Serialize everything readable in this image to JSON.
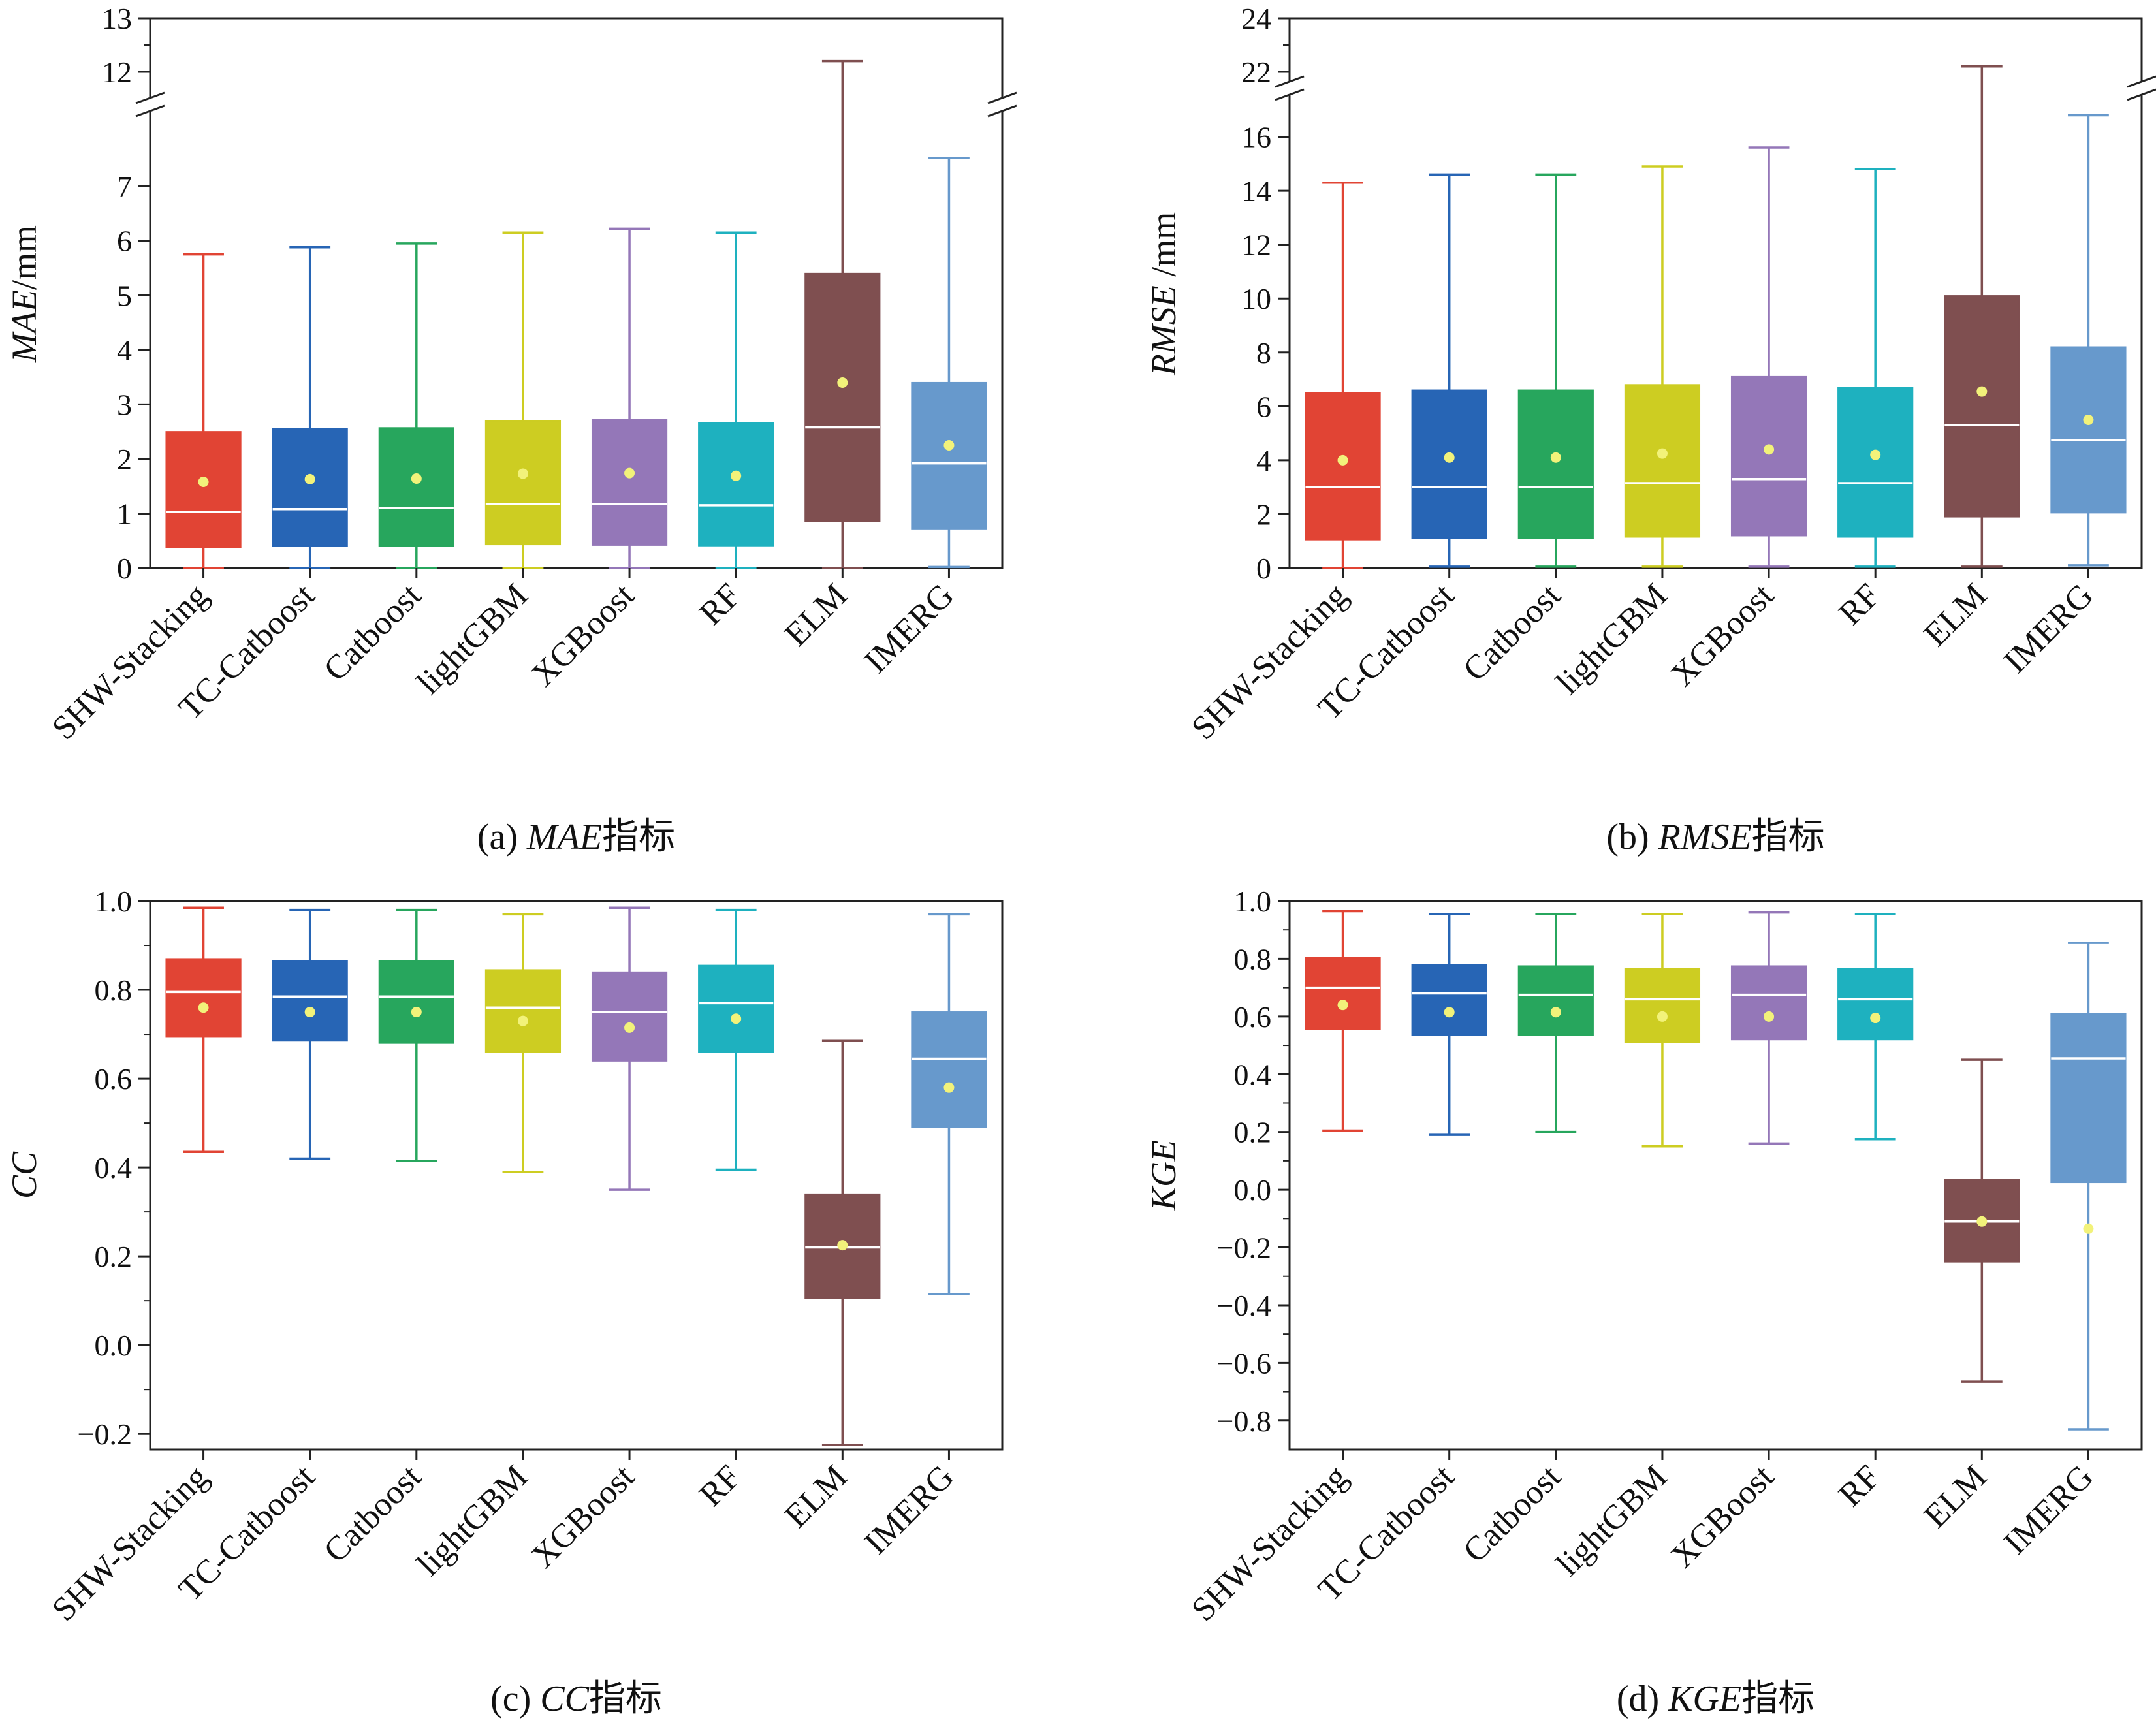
{
  "chart_data": [
    {
      "type": "box",
      "caption_prefix": "(a) ",
      "caption_metric": "MAE",
      "caption_suffix": "指标",
      "ylabel_metric": "MAE",
      "ylabel_unit": "/mm",
      "categories": [
        "SHW-Stacking",
        "TC-Catboost",
        "Catboost",
        "lightGBM",
        "XGBoost",
        "RF",
        "ELM",
        "IMERG"
      ],
      "lower_range": [
        0,
        7.9
      ],
      "upper_range": [
        12,
        13
      ],
      "lower_ticks": [
        "0",
        "1",
        "2",
        "3",
        "4",
        "5",
        "6",
        "7"
      ],
      "upper_ticks": [
        "12",
        "13"
      ],
      "boxes": [
        {
          "min": 0,
          "q1": 0.38,
          "median": 1.03,
          "q3": 2.5,
          "max": 5.75,
          "mean": 1.58
        },
        {
          "min": 0,
          "q1": 0.4,
          "median": 1.08,
          "q3": 2.55,
          "max": 5.88,
          "mean": 1.63
        },
        {
          "min": 0,
          "q1": 0.4,
          "median": 1.1,
          "q3": 2.57,
          "max": 5.95,
          "mean": 1.64
        },
        {
          "min": 0,
          "q1": 0.43,
          "median": 1.17,
          "q3": 2.7,
          "max": 6.15,
          "mean": 1.73
        },
        {
          "min": 0,
          "q1": 0.42,
          "median": 1.17,
          "q3": 2.72,
          "max": 6.22,
          "mean": 1.74
        },
        {
          "min": 0,
          "q1": 0.41,
          "median": 1.15,
          "q3": 2.66,
          "max": 6.15,
          "mean": 1.69
        },
        {
          "min": 0,
          "q1": 0.85,
          "median": 2.58,
          "q3": 5.4,
          "max": 12.2,
          "mean": 3.4
        },
        {
          "min": 0.02,
          "q1": 0.72,
          "median": 1.92,
          "q3": 3.4,
          "max": 7.52,
          "mean": 2.25
        }
      ]
    },
    {
      "type": "box",
      "caption_prefix": "(b) ",
      "caption_metric": "RMSE",
      "caption_suffix": "指标",
      "ylabel_metric": "RMSE",
      "ylabel_unit": " /mm",
      "categories": [
        "SHW-Stacking",
        "TC-Catboost",
        "Catboost",
        "lightGBM",
        "XGBoost",
        "RF",
        "ELM",
        "IMERG"
      ],
      "lower_range": [
        0,
        17.2
      ],
      "upper_range": [
        22,
        24
      ],
      "lower_ticks": [
        "0",
        "2",
        "4",
        "6",
        "8",
        "10",
        "12",
        "14",
        "16"
      ],
      "upper_ticks": [
        "22",
        "24"
      ],
      "boxes": [
        {
          "min": 0,
          "q1": 1.05,
          "median": 3.0,
          "q3": 6.5,
          "max": 14.3,
          "mean": 4.0
        },
        {
          "min": 0.05,
          "q1": 1.1,
          "median": 3.0,
          "q3": 6.6,
          "max": 14.6,
          "mean": 4.1
        },
        {
          "min": 0.05,
          "q1": 1.1,
          "median": 3.0,
          "q3": 6.6,
          "max": 14.6,
          "mean": 4.1
        },
        {
          "min": 0.05,
          "q1": 1.15,
          "median": 3.15,
          "q3": 6.8,
          "max": 14.9,
          "mean": 4.25
        },
        {
          "min": 0.05,
          "q1": 1.2,
          "median": 3.3,
          "q3": 7.1,
          "max": 15.6,
          "mean": 4.4
        },
        {
          "min": 0.05,
          "q1": 1.15,
          "median": 3.15,
          "q3": 6.7,
          "max": 14.8,
          "mean": 4.2
        },
        {
          "min": 0.05,
          "q1": 1.9,
          "median": 5.3,
          "q3": 10.1,
          "max": 22.2,
          "mean": 6.55
        },
        {
          "min": 0.1,
          "q1": 2.05,
          "median": 4.75,
          "q3": 8.2,
          "max": 16.8,
          "mean": 5.5
        }
      ]
    },
    {
      "type": "box",
      "caption_prefix": "(c) ",
      "caption_metric": "CC",
      "caption_suffix": "指标",
      "ylabel_metric": "CC",
      "ylabel_unit": "",
      "categories": [
        "SHW-Stacking",
        "TC-Catboost",
        "Catboost",
        "lightGBM",
        "XGBoost",
        "RF",
        "ELM",
        "IMERG"
      ],
      "ylim": [
        -0.235,
        1.0
      ],
      "ticks": [
        "−0.2",
        "0.0",
        "0.2",
        "0.4",
        "0.6",
        "0.8",
        "1.0"
      ],
      "tick_values": [
        -0.2,
        0.0,
        0.2,
        0.4,
        0.6,
        0.8,
        1.0
      ],
      "boxes": [
        {
          "min": 0.435,
          "q1": 0.695,
          "median": 0.795,
          "q3": 0.87,
          "max": 0.985,
          "mean": 0.76
        },
        {
          "min": 0.42,
          "q1": 0.685,
          "median": 0.785,
          "q3": 0.865,
          "max": 0.98,
          "mean": 0.75
        },
        {
          "min": 0.415,
          "q1": 0.68,
          "median": 0.785,
          "q3": 0.865,
          "max": 0.98,
          "mean": 0.75
        },
        {
          "min": 0.39,
          "q1": 0.66,
          "median": 0.76,
          "q3": 0.845,
          "max": 0.97,
          "mean": 0.73
        },
        {
          "min": 0.35,
          "q1": 0.64,
          "median": 0.75,
          "q3": 0.84,
          "max": 0.985,
          "mean": 0.715
        },
        {
          "min": 0.395,
          "q1": 0.66,
          "median": 0.77,
          "q3": 0.855,
          "max": 0.98,
          "mean": 0.735
        },
        {
          "min": -0.225,
          "q1": 0.105,
          "median": 0.22,
          "q3": 0.34,
          "max": 0.685,
          "mean": 0.225
        },
        {
          "min": 0.115,
          "q1": 0.49,
          "median": 0.645,
          "q3": 0.75,
          "max": 0.97,
          "mean": 0.58
        }
      ]
    },
    {
      "type": "box",
      "caption_prefix": "(d) ",
      "caption_metric": "KGE",
      "caption_suffix": "指标",
      "ylabel_metric": "KGE",
      "ylabel_unit": "",
      "categories": [
        "SHW-Stacking",
        "TC-Catboost",
        "Catboost",
        "lightGBM",
        "XGBoost",
        "RF",
        "ELM",
        "IMERG"
      ],
      "ylim": [
        -0.9,
        1.0
      ],
      "ticks": [
        "−0.8",
        "−0.6",
        "−0.4",
        "−0.2",
        "0.0",
        "0.2",
        "0.4",
        "0.6",
        "0.8",
        "1.0"
      ],
      "tick_values": [
        -0.8,
        -0.6,
        -0.4,
        -0.2,
        0.0,
        0.2,
        0.4,
        0.6,
        0.8,
        1.0
      ],
      "boxes": [
        {
          "min": 0.205,
          "q1": 0.555,
          "median": 0.7,
          "q3": 0.805,
          "max": 0.965,
          "mean": 0.64
        },
        {
          "min": 0.19,
          "q1": 0.535,
          "median": 0.68,
          "q3": 0.78,
          "max": 0.955,
          "mean": 0.615
        },
        {
          "min": 0.2,
          "q1": 0.535,
          "median": 0.675,
          "q3": 0.775,
          "max": 0.955,
          "mean": 0.615
        },
        {
          "min": 0.15,
          "q1": 0.51,
          "median": 0.66,
          "q3": 0.765,
          "max": 0.955,
          "mean": 0.6
        },
        {
          "min": 0.16,
          "q1": 0.52,
          "median": 0.675,
          "q3": 0.775,
          "max": 0.96,
          "mean": 0.6
        },
        {
          "min": 0.175,
          "q1": 0.52,
          "median": 0.66,
          "q3": 0.765,
          "max": 0.955,
          "mean": 0.595
        },
        {
          "min": -0.665,
          "q1": -0.25,
          "median": -0.11,
          "q3": 0.035,
          "max": 0.45,
          "mean": -0.11
        },
        {
          "min": -0.83,
          "q1": 0.025,
          "median": 0.455,
          "q3": 0.61,
          "max": 0.855,
          "mean": -0.135
        }
      ]
    }
  ],
  "colors": {
    "boxes": [
      "#e14434",
      "#2765b5",
      "#27a65d",
      "#cdcd22",
      "#9477b8",
      "#1eb1bf",
      "#7f4f50",
      "#6799cc"
    ],
    "median_line": "#ffffff",
    "mean_marker": "#f2f27a"
  }
}
